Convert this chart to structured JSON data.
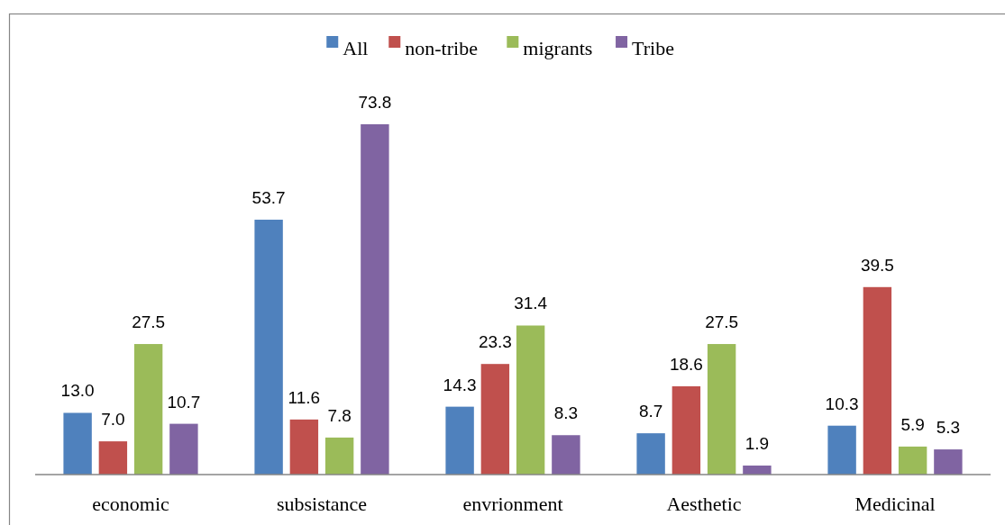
{
  "chart_data": {
    "type": "bar",
    "categories": [
      "economic",
      "subsistance",
      "envrionment",
      "Aesthetic",
      "Medicinal"
    ],
    "series": [
      {
        "name": "All",
        "color": "#4f81bd",
        "values": [
          13.0,
          53.7,
          14.3,
          8.7,
          10.3
        ],
        "value_labels": [
          "13.0",
          "53.7",
          "14.3",
          "8.7",
          "10.3"
        ]
      },
      {
        "name": "non-tribe",
        "color": "#c0504d",
        "values": [
          7.0,
          11.6,
          23.3,
          18.6,
          39.5
        ],
        "value_labels": [
          "7.0",
          "11.6",
          "23.3",
          "18.6",
          "39.5"
        ]
      },
      {
        "name": "migrants",
        "color": "#9bbb59",
        "values": [
          27.5,
          7.8,
          31.4,
          27.5,
          5.9
        ],
        "value_labels": [
          "27.5",
          "7.8",
          "31.4",
          "27.5",
          "5.9"
        ]
      },
      {
        "name": "Tribe",
        "color": "#8064a2",
        "values": [
          10.7,
          73.8,
          8.3,
          1.9,
          5.3
        ],
        "value_labels": [
          "10.7",
          "73.8",
          "8.3",
          "1.9",
          "5.3"
        ]
      }
    ],
    "legend": "top"
  }
}
